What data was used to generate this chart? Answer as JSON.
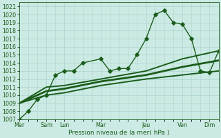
{
  "xlabel": "Pression niveau de la mer( hPa )",
  "bg_color": "#cceae4",
  "grid_color": "#aad4cc",
  "line_color": "#1a5c1a",
  "ylim": [
    1007,
    1021.5
  ],
  "yticks": [
    1007,
    1008,
    1009,
    1010,
    1011,
    1012,
    1013,
    1014,
    1015,
    1016,
    1017,
    1018,
    1019,
    1020,
    1021
  ],
  "xlim": [
    0,
    22
  ],
  "day_ticks": [
    0,
    3,
    5,
    9,
    14,
    18,
    21
  ],
  "day_labels": [
    "Mer",
    "Sam",
    "Lun",
    "Mar",
    "Jeu",
    "Ven",
    "Dim"
  ],
  "main_x": [
    0,
    1,
    2,
    3,
    4,
    5,
    6,
    7,
    9,
    10,
    11,
    12,
    13,
    14,
    15,
    16,
    17,
    18,
    19,
    20,
    21,
    22
  ],
  "main_y": [
    1007,
    1008,
    1009.5,
    1010,
    1012.5,
    1013,
    1013,
    1014,
    1014.5,
    1013,
    1013.3,
    1013.3,
    1015,
    1017,
    1020,
    1020.5,
    1019,
    1018.8,
    1017,
    1013,
    1012.8,
    1015.5
  ],
  "upper_x": [
    0,
    3,
    5,
    9,
    14,
    18,
    22
  ],
  "upper_y": [
    1009,
    1011,
    1011.2,
    1012,
    1013,
    1014.5,
    1015.5
  ],
  "lower_x": [
    0,
    3,
    5,
    9,
    14,
    18,
    22
  ],
  "lower_y": [
    1009,
    1010,
    1010.3,
    1011.2,
    1012,
    1012.5,
    1013
  ],
  "mid_x": [
    0,
    3,
    5,
    9,
    14,
    18,
    22
  ],
  "mid_y": [
    1009,
    1010.5,
    1010.8,
    1011.7,
    1012.5,
    1013.5,
    1014.3
  ],
  "marker_size": 2.8,
  "line_width": 1.0,
  "tick_label_color": "#1a5c1a",
  "label_fontsize": 6.5,
  "tick_fontsize": 5.8
}
